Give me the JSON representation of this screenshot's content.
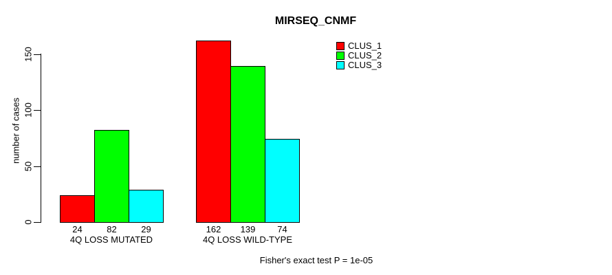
{
  "chart_data": {
    "type": "bar",
    "title": "MIRSEQ_CNMF",
    "ylabel": "number of cases",
    "xlabel": "",
    "footer": "Fisher's exact test P = 1e-05",
    "categories": [
      "4Q LOSS MUTATED",
      "4Q LOSS WILD-TYPE"
    ],
    "series": [
      {
        "name": "CLUS_1",
        "color": "#ff0000",
        "values": [
          24,
          162
        ]
      },
      {
        "name": "CLUS_2",
        "color": "#00ff00",
        "values": [
          82,
          139
        ]
      },
      {
        "name": "CLUS_3",
        "color": "#00ffff",
        "values": [
          29,
          74
        ]
      }
    ],
    "yticks": [
      0,
      50,
      100,
      150
    ],
    "ylim": [
      0,
      165
    ],
    "bar_value_labels": true,
    "grid": false,
    "legend_position": "top-right",
    "colors": {
      "background": "#ffffff",
      "axis": "#000000",
      "text": "#000000"
    }
  }
}
